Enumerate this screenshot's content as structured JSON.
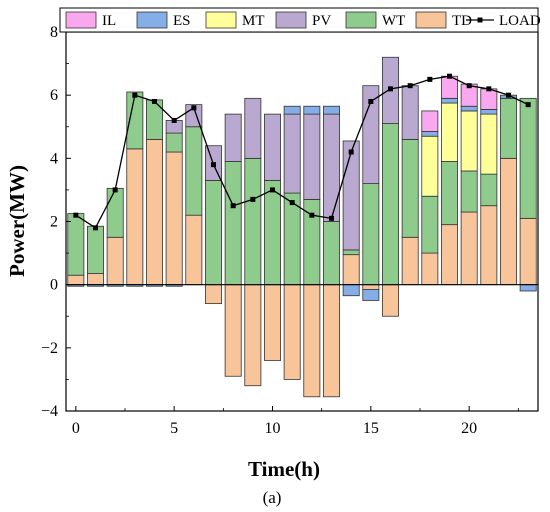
{
  "chart_data": {
    "type": "bar",
    "stacked": true,
    "title": "",
    "xlabel": "Time(h)",
    "ylabel": "Power(MW)",
    "caption": "(a)",
    "xlim": [
      -0.5,
      23.5
    ],
    "ylim": [
      -4,
      8
    ],
    "xticks": [
      0,
      5,
      10,
      15,
      20
    ],
    "yticks": [
      -4,
      -2,
      0,
      2,
      4,
      6,
      8
    ],
    "x": [
      0,
      1,
      2,
      3,
      4,
      5,
      6,
      7,
      8,
      9,
      10,
      11,
      12,
      13,
      14,
      15,
      16,
      17,
      18,
      19,
      20,
      21,
      22,
      23
    ],
    "legend_position": "top",
    "series": [
      {
        "name": "TD",
        "color": "#F8C49A",
        "values": [
          0.3,
          0.35,
          1.5,
          4.3,
          4.6,
          4.2,
          2.2,
          -0.6,
          -2.9,
          -3.2,
          -2.4,
          -3.0,
          -3.55,
          -3.55,
          0.95,
          -0.15,
          -1.0,
          1.5,
          1.0,
          1.9,
          2.3,
          2.5,
          4.0,
          2.1
        ]
      },
      {
        "name": "WT",
        "color": "#8FCB8C",
        "values": [
          1.95,
          1.5,
          1.55,
          1.8,
          1.25,
          0.6,
          2.8,
          3.3,
          3.9,
          4.0,
          3.3,
          2.9,
          2.7,
          2.0,
          0.15,
          3.2,
          5.1,
          3.1,
          1.8,
          2.0,
          1.3,
          1.0,
          1.9,
          3.8
        ]
      },
      {
        "name": "PV",
        "color": "#B9A8D0",
        "values": [
          0,
          0,
          0,
          0,
          0,
          0.4,
          0.7,
          1.1,
          1.5,
          1.9,
          2.1,
          2.5,
          2.7,
          3.4,
          3.45,
          3.1,
          2.1,
          1.7,
          0,
          0,
          0,
          0,
          0,
          0
        ]
      },
      {
        "name": "MT",
        "color": "#FFFF99",
        "values": [
          0,
          0,
          0,
          0,
          0,
          0,
          0,
          0,
          0,
          0,
          0,
          0,
          0,
          0,
          0,
          0,
          0,
          0,
          1.9,
          1.85,
          1.9,
          1.9,
          0,
          0
        ]
      },
      {
        "name": "ES",
        "color": "#86AEE6",
        "values": [
          -0.05,
          -0.05,
          -0.05,
          -0.05,
          -0.05,
          -0.05,
          0,
          0,
          0,
          0,
          0,
          0.25,
          0.25,
          0.25,
          -0.35,
          -0.35,
          0,
          0,
          0.15,
          0.15,
          0.15,
          0.15,
          0.1,
          -0.2
        ]
      },
      {
        "name": "IL",
        "color": "#F9A8F0",
        "values": [
          0,
          0,
          0,
          0,
          0,
          0,
          0,
          0,
          0,
          0,
          0,
          0,
          0,
          0,
          0,
          0,
          0,
          0,
          0.65,
          0.7,
          0.7,
          0.65,
          0,
          0
        ]
      }
    ],
    "load": {
      "name": "LOAD",
      "color": "#000000",
      "values": [
        2.2,
        1.8,
        3.0,
        6.0,
        5.8,
        5.2,
        5.6,
        3.8,
        2.5,
        2.7,
        3.0,
        2.6,
        2.2,
        2.1,
        4.2,
        5.8,
        6.2,
        6.3,
        6.5,
        6.6,
        6.3,
        6.2,
        6.0,
        5.7
      ]
    },
    "legend_order": [
      "IL",
      "ES",
      "MT",
      "PV",
      "WT",
      "TD",
      "LOAD"
    ]
  }
}
